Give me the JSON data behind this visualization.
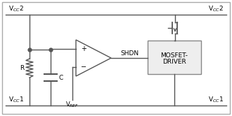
{
  "bg_color": "#ffffff",
  "border_color": "#aaaaaa",
  "line_color": "#555555",
  "text_color": "#000000",
  "figsize": [
    3.3,
    1.66
  ],
  "dpi": 100,
  "vcc2_label_left": "V$_{CC}$2",
  "vcc1_label_left": "V$_{CC}$1",
  "vcc2_label_right": "V$_{CC}$2",
  "vcc1_label_right": "V$_{CC}$1",
  "shdn_label": "SHDN",
  "vref_label": "V$_{REF}$",
  "mosfet_driver_line1": "MOSFET-",
  "mosfet_driver_line2": "DRIVER",
  "r_label": "R",
  "c_label": "C"
}
